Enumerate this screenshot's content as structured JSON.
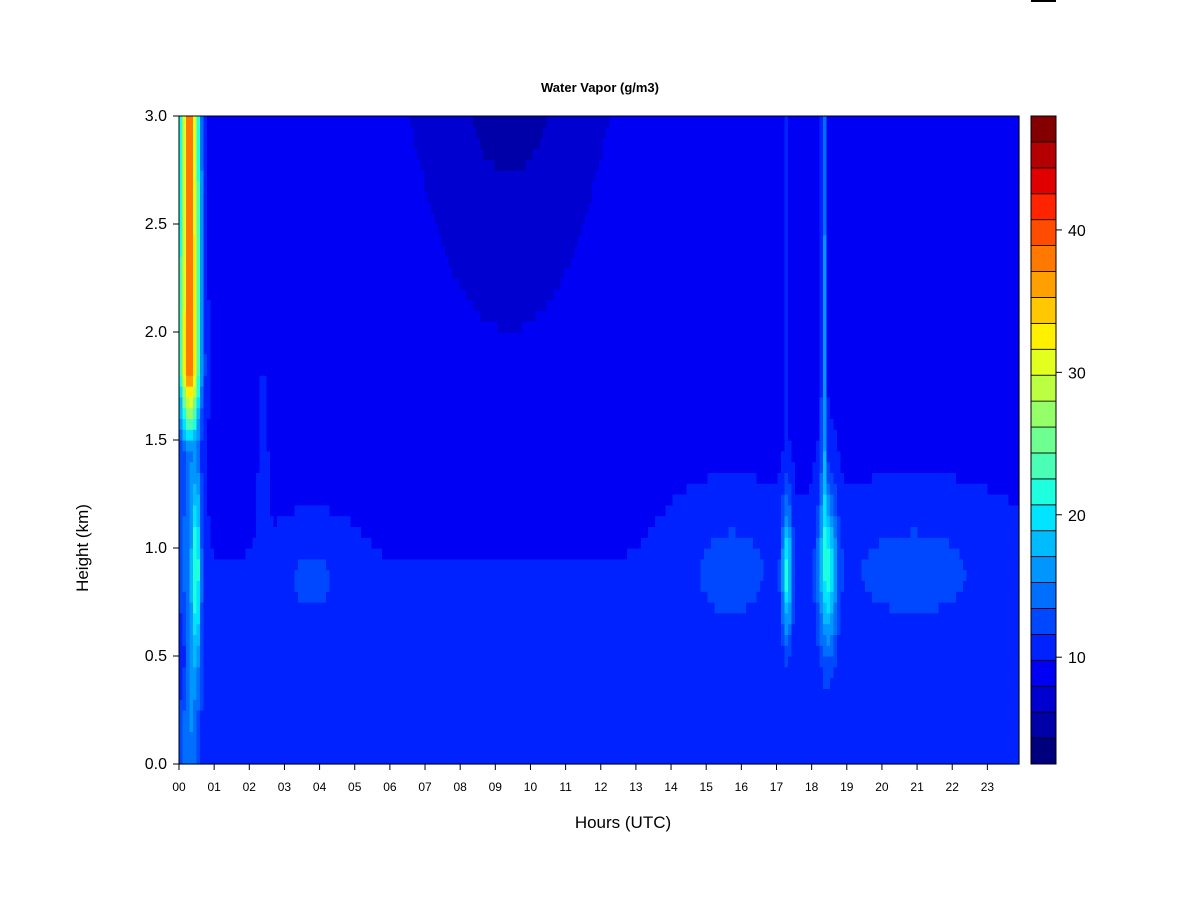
{
  "chart_data": {
    "type": "heatmap",
    "title": "Water Vapor (g/m3)",
    "xlabel": "Hours (UTC)",
    "ylabel": "Height (km)",
    "x_range_hours": [
      0,
      23.9
    ],
    "y_range_km": [
      0,
      3
    ],
    "x_ticks": [
      {
        "value": 0,
        "label": "00"
      },
      {
        "value": 1,
        "label": "01"
      },
      {
        "value": 2,
        "label": "02"
      },
      {
        "value": 3,
        "label": "03"
      },
      {
        "value": 4,
        "label": "04"
      },
      {
        "value": 5,
        "label": "05"
      },
      {
        "value": 6,
        "label": "06"
      },
      {
        "value": 7,
        "label": "07"
      },
      {
        "value": 8,
        "label": "08"
      },
      {
        "value": 9,
        "label": "09"
      },
      {
        "value": 10,
        "label": "10"
      },
      {
        "value": 11,
        "label": "11"
      },
      {
        "value": 12,
        "label": "12"
      },
      {
        "value": 13,
        "label": "13"
      },
      {
        "value": 14,
        "label": "14"
      },
      {
        "value": 15,
        "label": "15"
      },
      {
        "value": 16,
        "label": "16"
      },
      {
        "value": 17,
        "label": "17"
      },
      {
        "value": 18,
        "label": "18"
      },
      {
        "value": 19,
        "label": "19"
      },
      {
        "value": 20,
        "label": "20"
      },
      {
        "value": 21,
        "label": "21"
      },
      {
        "value": 22,
        "label": "22"
      },
      {
        "value": 23,
        "label": "23"
      }
    ],
    "y_ticks": [
      {
        "value": 0.0,
        "label": "0.0"
      },
      {
        "value": 0.5,
        "label": "0.5"
      },
      {
        "value": 1.0,
        "label": "1.0"
      },
      {
        "value": 1.5,
        "label": "1.5"
      },
      {
        "value": 2.0,
        "label": "2.0"
      },
      {
        "value": 2.5,
        "label": "2.5"
      },
      {
        "value": 3.0,
        "label": "3.0"
      }
    ],
    "colorbar": {
      "range": [
        2.5,
        48
      ],
      "tick_values": [
        10,
        20,
        30,
        40
      ],
      "tick_labels": [
        "10",
        "20",
        "30",
        "40"
      ],
      "colors": [
        "#00007F",
        "#0000A8",
        "#0000D0",
        "#0000F5",
        "#0022FF",
        "#0048FF",
        "#006EFF",
        "#0096FF",
        "#00BCFF",
        "#00E4FF",
        "#1EFFE0",
        "#4AFFB5",
        "#6EFF90",
        "#95FF6A",
        "#BCFF42",
        "#E2FF1E",
        "#FFF000",
        "#FFC800",
        "#FFA000",
        "#FF7800",
        "#FF4C00",
        "#FF2400",
        "#E00000",
        "#B40000",
        "#840000"
      ]
    },
    "field": {
      "description_levels_g_m3": {
        "background_surface": 10,
        "background_aloft": 8,
        "dry_layer_top_08_11_UTC": 5
      },
      "features": [
        {
          "x": 0.3,
          "y_min": 1.7,
          "y_max": 3.0,
          "value": 40
        },
        {
          "x": 0.45,
          "y": 0.9,
          "value": 20
        },
        {
          "x": 17.3,
          "y": 0.9,
          "value": 21
        },
        {
          "x": 18.4,
          "y": 0.9,
          "value": 21
        },
        {
          "x": 18.35,
          "y_min": 1.2,
          "y_max": 3.0,
          "value": 17
        }
      ]
    }
  }
}
